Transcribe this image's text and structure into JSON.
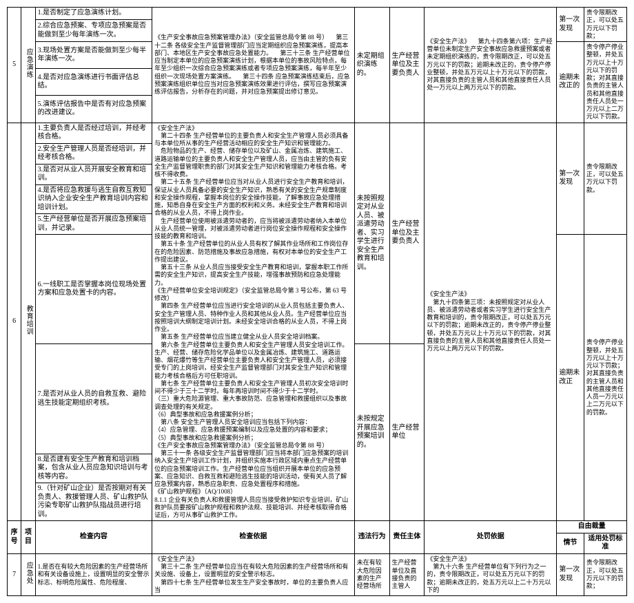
{
  "row5": {
    "seq": "5",
    "item": "应急演练",
    "checks": [
      "1.是否制定了应急演练计划。",
      "2.综合应急预案、专项应急预案是否能做到至少每年演练一次。",
      "3.现场处置方案是否能做到至少每半年演练一次。",
      "4.是否对应急演练进行书面评估总结。",
      "5.演练评估报告中是否有对应急预案的改进建议。"
    ],
    "basis": "《生产安全事故应急预案管理办法》（安全监管总局令第 88 号）\n　第三十二条 各级安全生产监督管理部门应当定期组织应急预案演练，提高本部门、本地区生产安全事故应急处置能力。\n　第三十三条 生产经营单位应当制定本单位的应急预案演练计划，根据本单位的事故风险特点，每年至少组织一次综合应急预案演练或者专项应急预案演练，每半年至少组织一次现场处置方案演练。\n　第三十四条 应急预案演练结束后，应急预案演练组织单位应当对应急预案演练效果进行评估，撰写应急预案演练评估报告，分析存在的问题，并对应急预案提出修订意见。",
    "viol": "未定期组织演练的。",
    "subj": "生产经营单位及主要负责人",
    "penalty": "《安全生产法》\n　第九十四条第六项：生产经营单位未制定生产安全事故应急救援预案或者未定期组织演练的，责令限期改正，可以处五万元以下的罚款；逾期未改正的，责令停产停业整顿，并处五万元以上十万元以下的罚款，对其直接负责的主管人员和其他直接责任人员处一万元以上两万元以下的罚款。",
    "circ1": "第一次发现",
    "std1": "责令限期改正，可以处五万元以下罚款；",
    "circ2": "逾期未改正的",
    "std2": "责令停产停业整顿，并处五万元以上十万元以下的罚款；对其直接负责的主管人员和其他直接责任人员处一万元以上二万元以下罚款。"
  },
  "row6": {
    "seq": "6",
    "item": "教育培训",
    "checks_a": [
      "1.主要负责人是否经过培训，并经考核合格。",
      "2.安全生产管理人员是否经培训，并经考核合格。",
      "3.是否对从业人员开展安全教育和培训。",
      "4.是否将应急救援与逃生自救互救知识纳入企业安全生产教育培训内容和培训计划。",
      "5.生产经营单位是否开展应急预案培训，并记录。",
      "6.一线职工是否掌握本岗位现场处置方案和应急处置卡的内容。",
      "7.是否对从业人员的自救互救、避险逃生技能定期组织考核。",
      "8.是否建有安全生产教育和培训档案，包含从业人员应急知识培训与考核等内容。",
      "9.（针对矿山企业）是否按期对有关负责人、救援管理人员、矿山救护队污染专职矿山救护队指战员进行培训。"
    ],
    "basis": "《安全生产法》\n　第二十四条 生产经营单位的主要负责人和安全生产管理人员必须具备与本单位所从事的生产经营活动相应的安全生产知识和管理能力。\n　危险物品的生产、经营、储存单位以及矿山、金属冶炼、建筑施工、道路运输单位的主要负责人和安全生产管理人员，应当由主管的负有安全生产监督管理职责的部门对其安全生产知识和管理能力考核合格。考核不得收费。\n　第二十五条 生产经营单位应当对从业人员进行安全生产教育和培训，保证从业人员具备必要的安全生产知识，熟悉有关的安全生产规章制度和安全操作规程，掌握本岗位的安全操作技能，了解事故应急处理措施，知悉自身在安全生产方面的权利和义务。未经安全生产教育和培训合格的从业人员，不得上岗作业。\n　生产经营单位使用被派遣劳动者的，应当将被派遣劳动者纳入本单位从业人员统一管理，对被派遣劳动者进行岗位安全操作规程和安全操作技能的教育和培训。\n　第五十条 生产经营单位的从业人员有权了解其作业场所和工作岗位存在的危险因素、防范措施及事故应急措施，有权对本单位的安全生产工作提出建议。\n　第五十三条 从业人员应当接受安全生产教育和培训，掌握本职工作所需的安全生产知识，提高安全生产技能，增强事故预防和应急处理能力。\n《生产经营单位安全培训规定》（安全监管总局令第 3 号公布，第 63 号修改）\n　第四条 生产经营单位应当进行安全培训的从业人员包括主要负责人、安全生产管理人员、特种作业人员和其他从业人员。生产经营单位应当按照培训大纲制定培训计划。未经安全培训合格的从业人员，不得上岗作业。\n　第五条 生产经营单位应当建立健全从业人员安全培训档案。\n　第六条 生产经营单位主要负责人和安全生产管理人员安全培训工作。生产、经营、储存危险化学品单位以及金属冶炼、建筑施工、道路运输、烟花爆竹等生产经营单位主要负责人和安全生产管理人员，必须接受专门的上岗培训，经安全生产监督管理部门对其安全生产知识和管理能力考核合格后方可任职培训。\n　第七条 生产经营单位主要负责人和安全生产管理人员初次安全培训时间不得少于三十二学时。每年再培训时间不得少于十二学时。\n（三）重大危险源管理、重大事故防范、应急管理和救援组织以及事故调查处理的有关规定。\n（6）典型事故和应急救援案例分析；\n　第八条 安全生产管理人员安全培训应当包括下列内容：\n（4）应急管理、应急救援预案编制以及应急处置的内容和要求；\n（5）典型事故和应急救援案例分析；\n《生产安全事故应急预案管理办法》（安全监管总局令第 88 号）\n　第三十一条 各级安全生产监督管理部门应当将本部门应急预案的培训纳入安全生产培训工作计划，并组织实施本行政区域内重点生产经营单位的应急预案培训工作。生产经营单位应当组织开展本单位的应急预案、应急知识、自救互救和避险逃生技能的培训活动，使有关人员了解应急预案内容，熟悉应急职责、应急处置程序和措施。\n《矿山救护规程》（AQ/1008）\n8.1.1 企业有关负责人和救援管理人员应当接受救护知识专业培训，矿山救护队员要按矿山救护规程和救护法规、技能培训、并经考核取得合格证后，方可从事矿山救护工作。",
    "viol1": "未按照规定对从业人员、被派遣劳动者、实习学生进行安全生产教育和培训。",
    "subj1": "生产经营单位及主要负责人",
    "penalty1": "《安全生产法》\n　第九十四条第三项：未按照规定对从业人员、被派遣劳动者或者实习学生进行安全生产教育和培训的，责令限期改正，可以处五万元以下的罚款；逾期未改正的，责令停产停业整顿，并处五万元以上十万元以下的罚款，对其直接负责的主管人员和其他直接责任人员处一万元以上两万元以下的罚款。",
    "viol2": "未按规定开展应急预案培训的。",
    "subj2": "生产经营单位",
    "circ_a1": "第一次发现",
    "std_a1": "责令限期改正，可以处五万元以下罚款。",
    "circ_a2": "逾期未改正",
    "std_a2": "责令停产停业整顿，并处五万元以上十万元以下罚款；\n对其直接负责的主管人员和其他直接责任人员一万元以上二万元以下的罚款。"
  },
  "header": {
    "seq": "序号",
    "item": "项目",
    "check": "检查内容",
    "basis": "检查依据",
    "viol": "违法行为",
    "subj": "责任主体",
    "penalty": "处罚依据",
    "free": "自由裁量",
    "circ": "情节",
    "std": "适用处罚标准"
  },
  "row7": {
    "seq": "7",
    "item": "应急处",
    "check": "1.是否在有较大危险因素的生产经营场所和有关设备设施上，设置明显的安全警示标志、标明危险属性、危险程度、",
    "basis": "《安全生产法》\n　第三十二条 生产经营单位应当在有较大危险因素的生产经营场所和有关设施、设备上，设置明显的安全警示标志。\n　第四十七条 生产经营单位发生生产安全事故时，单位的主要负责人应当",
    "viol": "未在有较大危险因素的生产经营场所",
    "subj": "生产经营单位及直接负责的主管人",
    "penalty": "《安全生产法》\n　第九十六条 生产经营单位有下列行为之一的，责令限期改正，可以处五万元以下的罚款；逾期未改正的，处五万元以上二十万元以下的",
    "circ": "第一次发现",
    "std": "责令限期改正，可以处五万元以下的罚款；"
  }
}
